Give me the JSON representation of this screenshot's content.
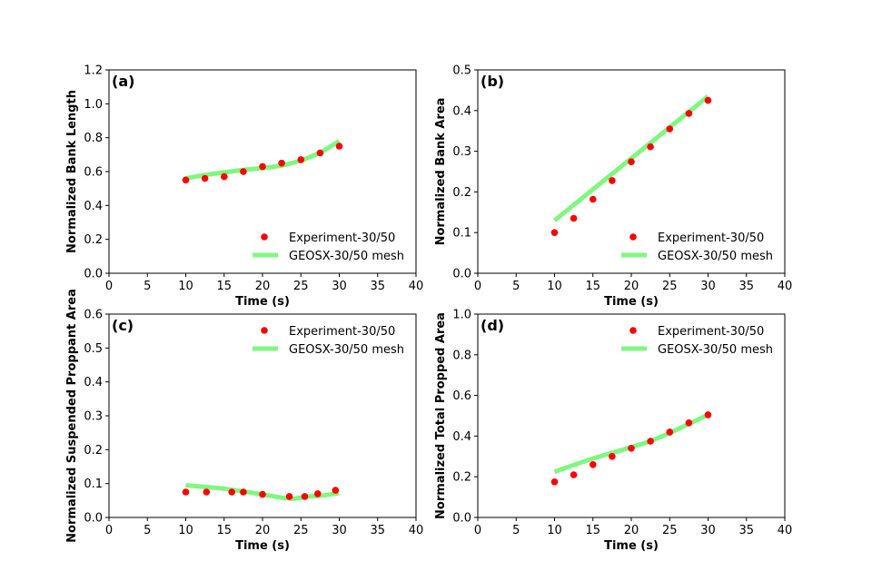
{
  "colors": {
    "experiment": "#ff0000",
    "model": "#80f780"
  },
  "chart_data": [
    {
      "type": "line",
      "panel_label": "(a)",
      "xlabel": "Time (s)",
      "ylabel": "Normalized Bank Length",
      "xlim": [
        0,
        40
      ],
      "ylim": [
        0,
        1.2
      ],
      "xticks": [
        "0",
        "5",
        "10",
        "15",
        "20",
        "25",
        "30",
        "35",
        "40"
      ],
      "yticks": [
        "0.0",
        "0.2",
        "0.4",
        "0.6",
        "0.8",
        "1.0",
        "1.2"
      ],
      "legend_position": "lower-right",
      "series": [
        {
          "name": "Experiment-30/50",
          "style": "markers",
          "x": [
            10,
            12.5,
            15,
            17.5,
            20,
            22.5,
            25,
            27.5,
            30
          ],
          "y": [
            0.55,
            0.56,
            0.57,
            0.6,
            0.63,
            0.65,
            0.67,
            0.71,
            0.75
          ]
        },
        {
          "name": "GEOSX-30/50 mesh",
          "style": "line",
          "x": [
            10,
            12.5,
            15,
            17.5,
            20,
            22.5,
            25,
            27.5,
            30
          ],
          "y": [
            0.56,
            0.58,
            0.595,
            0.61,
            0.62,
            0.635,
            0.665,
            0.71,
            0.78
          ]
        }
      ]
    },
    {
      "type": "line",
      "panel_label": "(b)",
      "xlabel": "Time (s)",
      "ylabel": "Normalized Bank Area",
      "xlim": [
        0,
        40
      ],
      "ylim": [
        0,
        0.5
      ],
      "xticks": [
        "0",
        "5",
        "10",
        "15",
        "20",
        "25",
        "30",
        "35",
        "40"
      ],
      "yticks": [
        "0.0",
        "0.1",
        "0.2",
        "0.3",
        "0.4",
        "0.5"
      ],
      "legend_position": "lower-right",
      "series": [
        {
          "name": "Experiment-30/50",
          "style": "markers",
          "x": [
            10,
            12.5,
            15,
            17.5,
            20,
            22.5,
            25,
            27.5,
            30
          ],
          "y": [
            0.1,
            0.135,
            0.182,
            0.228,
            0.274,
            0.311,
            0.355,
            0.393,
            0.425
          ]
        },
        {
          "name": "GEOSX-30/50 mesh",
          "style": "line",
          "x": [
            10,
            30
          ],
          "y": [
            0.13,
            0.435
          ]
        }
      ]
    },
    {
      "type": "line",
      "panel_label": "(c)",
      "xlabel": "Time (s)",
      "ylabel": "Normalized Suspended Proppant Area",
      "xlim": [
        0,
        40
      ],
      "ylim": [
        0,
        0.6
      ],
      "xticks": [
        "0",
        "5",
        "10",
        "15",
        "20",
        "25",
        "30",
        "35",
        "40"
      ],
      "yticks": [
        "0.0",
        "0.1",
        "0.2",
        "0.3",
        "0.4",
        "0.5",
        "0.6"
      ],
      "legend_position": "upper-right",
      "series": [
        {
          "name": "Experiment-30/50",
          "style": "markers",
          "x": [
            10,
            12.7,
            16,
            17.5,
            20,
            23.5,
            25.5,
            27.2,
            29.5
          ],
          "y": [
            0.075,
            0.075,
            0.075,
            0.075,
            0.068,
            0.062,
            0.062,
            0.07,
            0.08
          ]
        },
        {
          "name": "GEOSX-30/50 mesh",
          "style": "line",
          "x": [
            10,
            12.5,
            15,
            17.5,
            20,
            22.5,
            24,
            26,
            28,
            30
          ],
          "y": [
            0.095,
            0.09,
            0.085,
            0.077,
            0.068,
            0.058,
            0.055,
            0.062,
            0.065,
            0.072
          ]
        }
      ]
    },
    {
      "type": "line",
      "panel_label": "(d)",
      "xlabel": "Time (s)",
      "ylabel": "Normalized Total Propped Area",
      "xlim": [
        0,
        40
      ],
      "ylim": [
        0,
        1.0
      ],
      "xticks": [
        "0",
        "5",
        "10",
        "15",
        "20",
        "25",
        "30",
        "35",
        "40"
      ],
      "yticks": [
        "0.0",
        "0.2",
        "0.4",
        "0.6",
        "0.8",
        "1.0"
      ],
      "legend_position": "upper-right",
      "series": [
        {
          "name": "Experiment-30/50",
          "style": "markers",
          "x": [
            10,
            12.5,
            15,
            17.5,
            20,
            22.5,
            25,
            27.5,
            30
          ],
          "y": [
            0.175,
            0.21,
            0.26,
            0.3,
            0.34,
            0.375,
            0.42,
            0.465,
            0.505
          ]
        },
        {
          "name": "GEOSX-30/50 mesh",
          "style": "line",
          "x": [
            10,
            12.5,
            15,
            17.5,
            20,
            22.5,
            25,
            27.5,
            30
          ],
          "y": [
            0.225,
            0.258,
            0.29,
            0.318,
            0.345,
            0.375,
            0.415,
            0.46,
            0.505
          ]
        }
      ]
    }
  ]
}
